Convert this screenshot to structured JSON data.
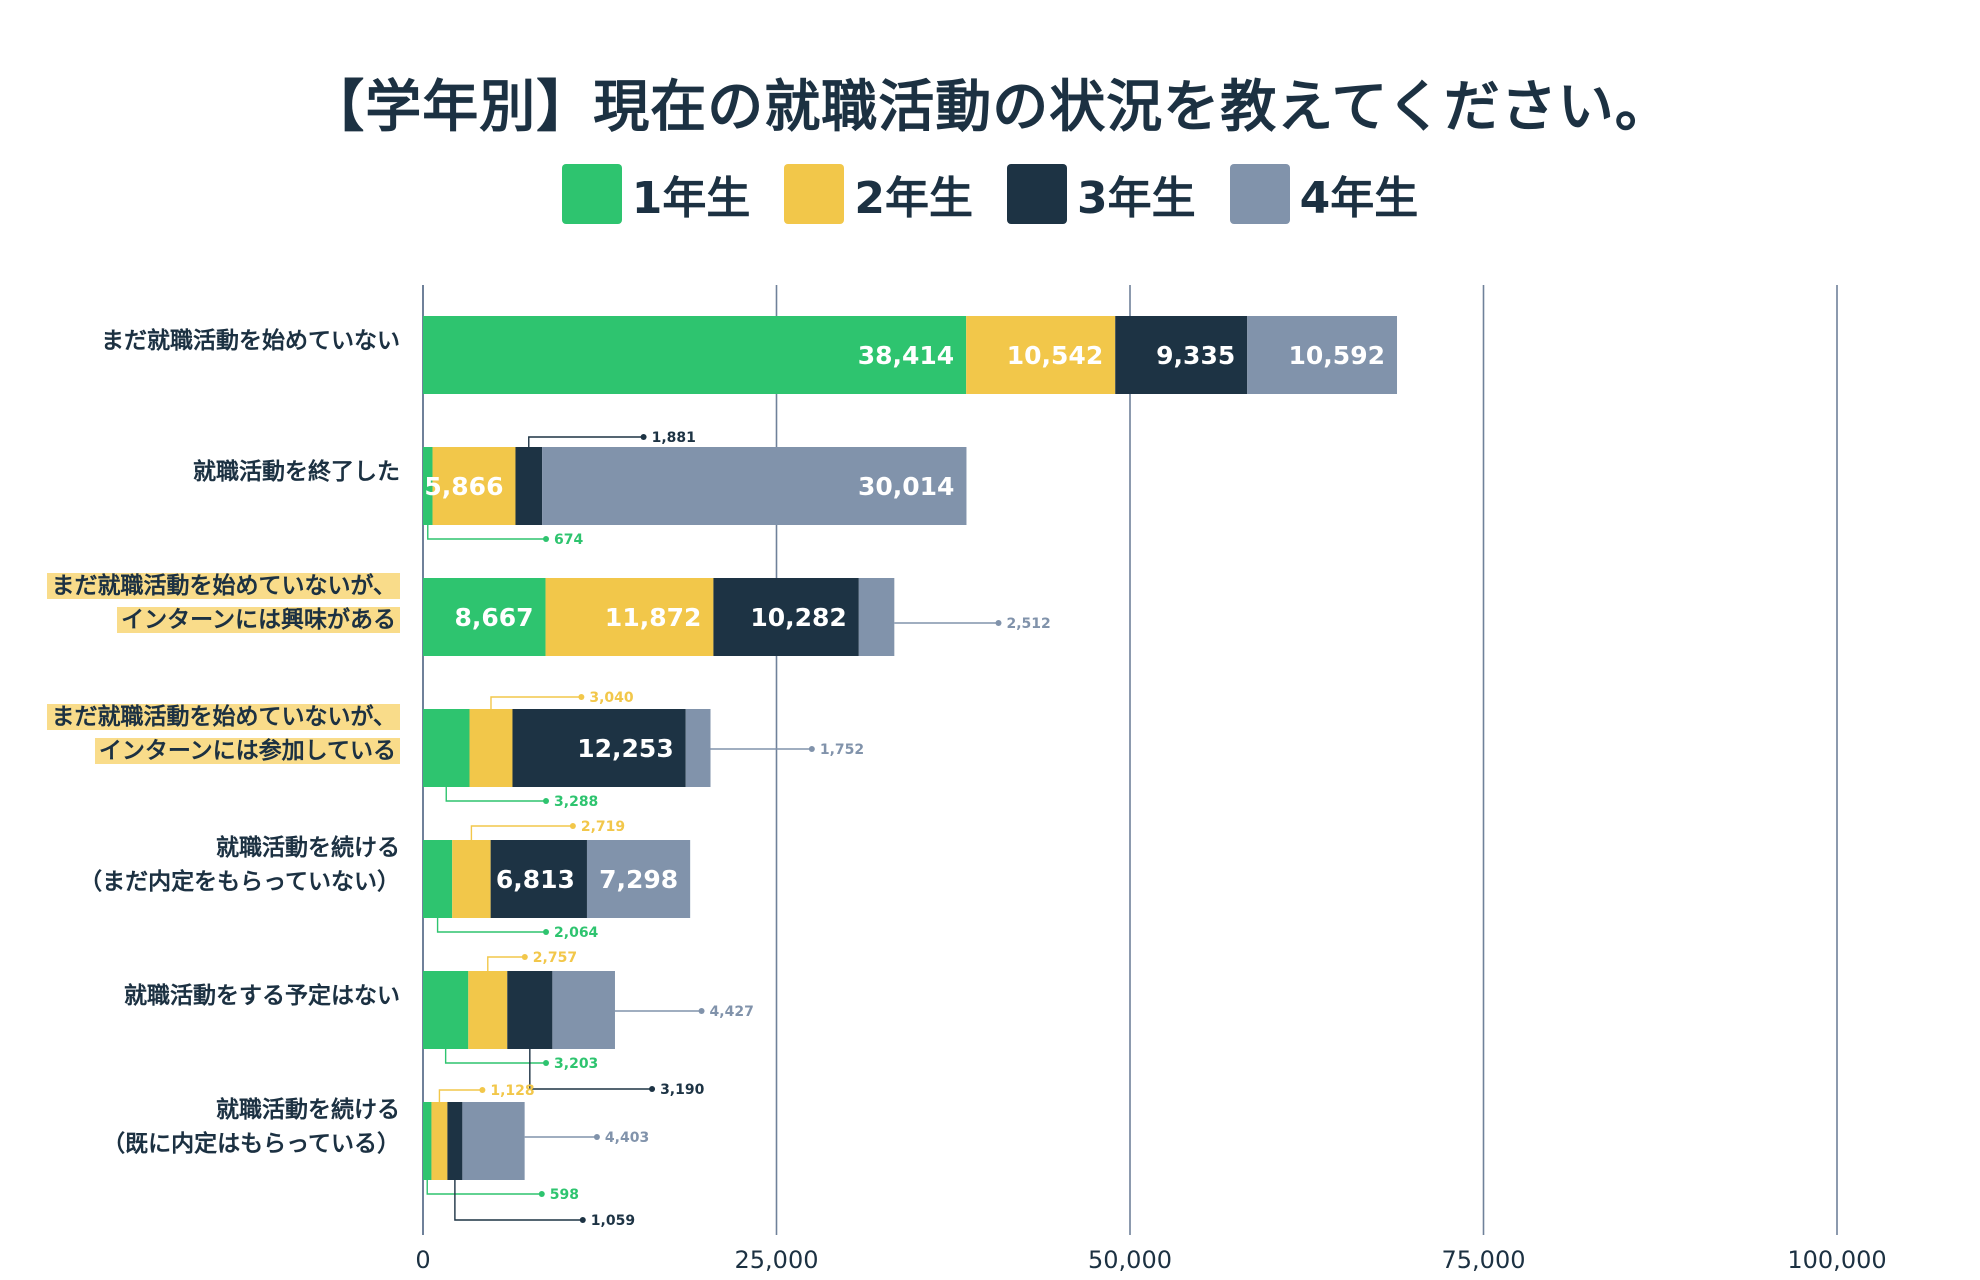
{
  "title": "【学年別】現在の就職活動の状況を教えてください。",
  "legend": [
    {
      "label": "1年生",
      "color": "#2ec46f"
    },
    {
      "label": "2年生",
      "color": "#f2c74a"
    },
    {
      "label": "3年生",
      "color": "#1d3344"
    },
    {
      "label": "4年生",
      "color": "#8193ab"
    }
  ],
  "categories": [
    {
      "lines": [
        "まだ就職活動を始めていない"
      ],
      "highlight": false
    },
    {
      "lines": [
        "就職活動を終了した"
      ],
      "highlight": false
    },
    {
      "lines": [
        "まだ就職活動を始めていないが、",
        "インターンには興味がある"
      ],
      "highlight": true
    },
    {
      "lines": [
        "まだ就職活動を始めていないが、",
        "インターンには参加している"
      ],
      "highlight": true
    },
    {
      "lines": [
        "就職活動を続ける",
        "（まだ内定をもらっていない）"
      ],
      "highlight": false
    },
    {
      "lines": [
        "就職活動をする予定はない"
      ],
      "highlight": false
    },
    {
      "lines": [
        "就職活動を続ける",
        "（既に内定はもらっている）"
      ],
      "highlight": false
    }
  ],
  "chart_data": {
    "type": "bar",
    "orientation": "horizontal",
    "stacked": true,
    "title": "【学年別】現在の就職活動の状況を教えてください。",
    "xlim": [
      0,
      100000
    ],
    "x_ticks": [
      0,
      25000,
      50000,
      75000,
      100000
    ],
    "x_tick_labels": [
      "0",
      "25,000",
      "50,000",
      "75,000",
      "100,000"
    ],
    "grid": true,
    "legend_position": "top-center",
    "categories": [
      "まだ就職活動を始めていない",
      "就職活動を終了した",
      "まだ就職活動を始めていないが、インターンには興味がある",
      "まだ就職活動を始めていないが、インターンには参加している",
      "就職活動を続ける（まだ内定をもらっていない）",
      "就職活動をする予定はない",
      "就職活動を続ける（既に内定はもらっている）"
    ],
    "series": [
      {
        "name": "1年生",
        "values": [
          38414,
          674,
          8667,
          3288,
          2064,
          3203,
          598
        ]
      },
      {
        "name": "2年生",
        "values": [
          10542,
          5866,
          11872,
          3040,
          2719,
          2757,
          1128
        ]
      },
      {
        "name": "3年生",
        "values": [
          9335,
          1881,
          10282,
          12253,
          6813,
          3190,
          1059
        ]
      },
      {
        "name": "4年生",
        "values": [
          10592,
          30014,
          2512,
          1752,
          7298,
          4427,
          4403
        ]
      }
    ],
    "value_labels": [
      [
        "38,414",
        "10,542",
        "9,335",
        "10,592"
      ],
      [
        "674",
        "5,866",
        "1,881",
        "30,014"
      ],
      [
        "8,667",
        "11,872",
        "10,282",
        "2,512"
      ],
      [
        "3,288",
        "3,040",
        "12,253",
        "1,752"
      ],
      [
        "2,064",
        "2,719",
        "6,813",
        "7,298"
      ],
      [
        "3,203",
        "2,757",
        "3,190",
        "4,427"
      ],
      [
        "598",
        "1,128",
        "1,059",
        "4,403"
      ]
    ]
  }
}
